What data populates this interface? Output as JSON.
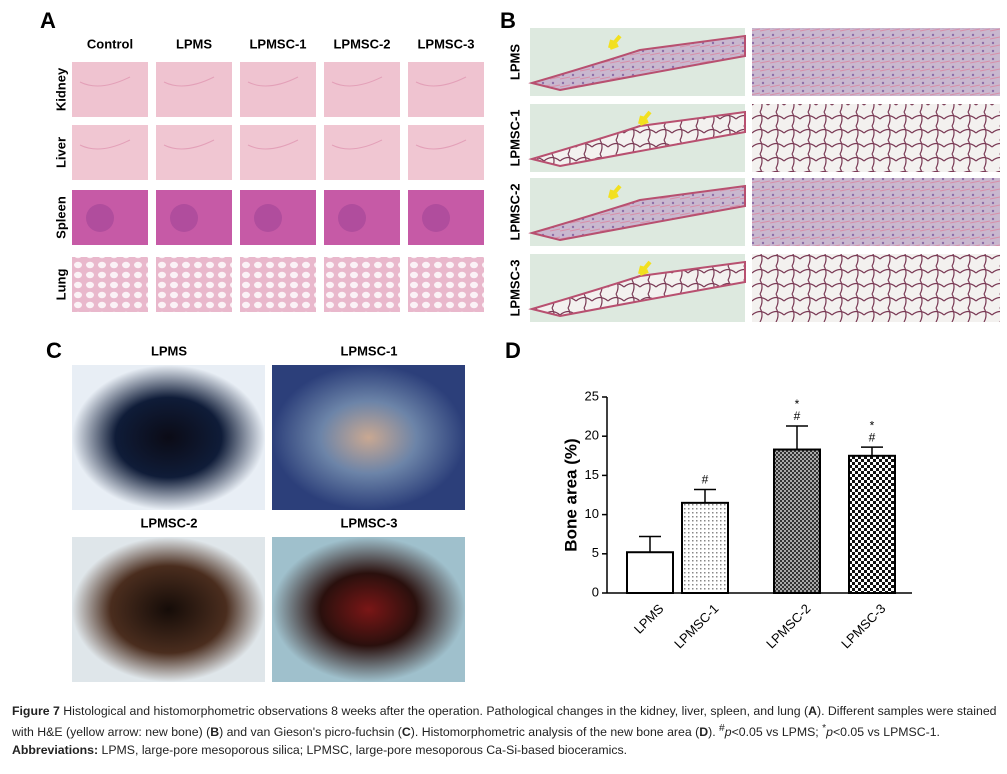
{
  "panels": {
    "A": {
      "label": "A",
      "columns": [
        "Control",
        "LPMS",
        "LPMSC-1",
        "LPMSC-2",
        "LPMSC-3"
      ],
      "rows": [
        "Kidney",
        "Liver",
        "Spleen",
        "Lung"
      ]
    },
    "B": {
      "label": "B",
      "rows": [
        "LPMS",
        "LPMSC-1",
        "LPMSC-2",
        "LPMSC-3"
      ]
    },
    "C": {
      "label": "C",
      "images": [
        "LPMS",
        "LPMSC-1",
        "LPMSC-2",
        "LPMSC-3"
      ]
    },
    "D": {
      "label": "D"
    }
  },
  "chart_data": {
    "type": "bar",
    "ylabel": "Bone area (%)",
    "categories": [
      "LPMS",
      "LPMSC-1",
      "LPMSC-2",
      "LPMSC-3"
    ],
    "values": [
      5.2,
      11.5,
      18.3,
      17.5
    ],
    "errors": [
      2,
      1.7,
      3,
      1.1
    ],
    "annotations": [
      [],
      [
        "#"
      ],
      [
        "*",
        "#"
      ],
      [
        "*",
        "#"
      ]
    ],
    "patterns": [
      "none",
      "dots",
      "fine-check",
      "check"
    ],
    "ylim": [
      0,
      25
    ],
    "yticks": [
      0,
      5,
      10,
      15,
      20,
      25
    ]
  },
  "caption": {
    "parts": [
      "Figure 7",
      " Histological and histomorphometric observations 8 weeks after the operation. Pathological changes in the kidney, liver, spleen, and lung (",
      "A",
      "). Different samples were stained with H&E (yellow arrow: new bone) (",
      "B",
      ") and van Gieson's picro-fuchsin (",
      "C",
      "). Histomorphometric analysis of the new bone area (",
      "D",
      "). ",
      "#",
      "p",
      "<0.05 vs LPMS; ",
      "*",
      "p",
      "<0.05 vs LPMSC-1."
    ],
    "abbreviations": [
      "Abbreviations:",
      " LPMS, large-pore mesoporous silica; LPMSC, large-pore mesoporous Ca-Si-based bioceramics."
    ]
  }
}
